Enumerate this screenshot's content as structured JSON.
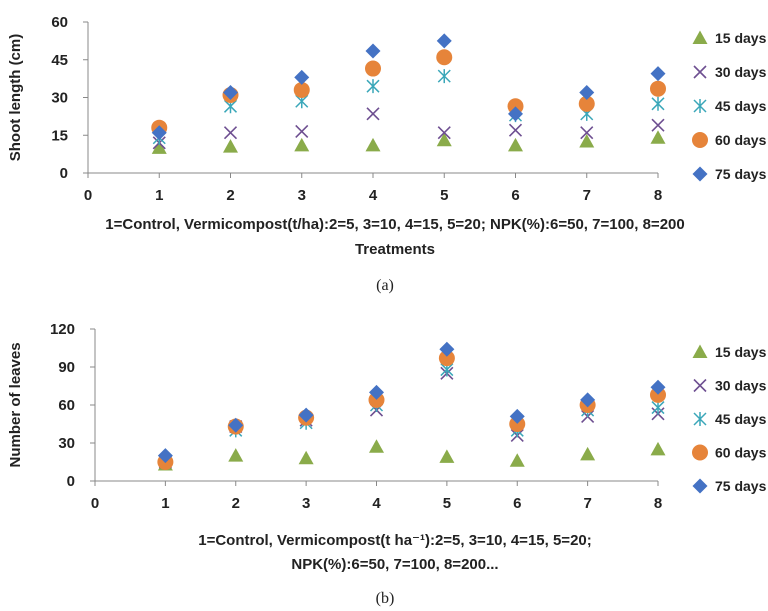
{
  "colors": {
    "15 days": "#8aab4a",
    "30 days": "#6e4f91",
    "45 days": "#3aa7b9",
    "60 days": "#e6843a",
    "75 days": "#4472c4"
  },
  "chart_data": [
    {
      "type": "scatter",
      "caption": "(a)",
      "ylabel": "Shoot length (cm)",
      "xlabel_lines": [
        "1=Control, Vermicompost(t/ha):2=5, 3=10, 4=15, 5=20; NPK(%):6=50, 7=100, 8=200",
        "Treatments"
      ],
      "xlim": [
        0,
        8
      ],
      "ylim": [
        0,
        60
      ],
      "xticks": [
        "0",
        "1",
        "2",
        "3",
        "4",
        "5",
        "6",
        "7",
        "8"
      ],
      "yticks": [
        "0",
        "15",
        "30",
        "45",
        "60"
      ],
      "legend_position": "right",
      "x": [
        1,
        2,
        3,
        4,
        5,
        6,
        7,
        8
      ],
      "series": [
        {
          "name": "15 days",
          "marker": "triangle",
          "values": [
            10,
            10.5,
            11,
            11,
            13,
            11,
            12.5,
            14
          ]
        },
        {
          "name": "30 days",
          "marker": "x",
          "values": [
            12,
            16,
            16.5,
            23.5,
            16,
            17,
            16,
            19
          ]
        },
        {
          "name": "45 days",
          "marker": "star",
          "values": [
            14,
            26.5,
            28.5,
            34.5,
            38.5,
            23,
            23.5,
            27.5
          ]
        },
        {
          "name": "60 days",
          "marker": "circle",
          "values": [
            18,
            31,
            33,
            41.5,
            46,
            26.5,
            27.5,
            33.5
          ]
        },
        {
          "name": "75 days",
          "marker": "diamond",
          "values": [
            16,
            32,
            38,
            48.5,
            52.5,
            23.5,
            32,
            39.5
          ]
        }
      ]
    },
    {
      "type": "scatter",
      "caption": "(b)",
      "ylabel": "Number of leaves",
      "xlabel_lines": [
        "1=Control, Vermicompost(t ha⁻¹):2=5, 3=10, 4=15, 5=20;",
        "NPK(%):6=50, 7=100, 8=200..."
      ],
      "xlim": [
        0,
        8
      ],
      "ylim": [
        0,
        120
      ],
      "xticks": [
        "0",
        "1",
        "2",
        "3",
        "4",
        "5",
        "6",
        "7",
        "8"
      ],
      "yticks": [
        "0",
        "30",
        "60",
        "90",
        "120"
      ],
      "legend_position": "right",
      "x": [
        1,
        2,
        3,
        4,
        5,
        6,
        7,
        8
      ],
      "series": [
        {
          "name": "15 days",
          "marker": "triangle",
          "values": [
            13,
            20,
            18,
            27,
            19,
            16,
            21,
            25
          ]
        },
        {
          "name": "30 days",
          "marker": "x",
          "values": [
            15,
            43,
            48,
            56,
            85,
            36,
            51,
            53
          ]
        },
        {
          "name": "45 days",
          "marker": "star",
          "values": [
            16,
            40,
            46,
            60,
            88,
            40,
            56,
            58
          ]
        },
        {
          "name": "60 days",
          "marker": "circle",
          "values": [
            15,
            43,
            50,
            64,
            97,
            45,
            60,
            68
          ]
        },
        {
          "name": "75 days",
          "marker": "diamond",
          "values": [
            20,
            44,
            52,
            70,
            104,
            51,
            64,
            74
          ]
        }
      ]
    }
  ]
}
